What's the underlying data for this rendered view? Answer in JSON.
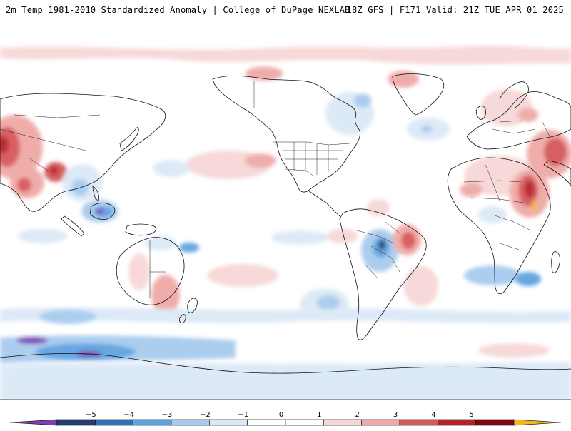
{
  "header": {
    "title": "2m Temp 1981-2010 Standardized Anomaly | College of DuPage NEXLAB",
    "run_info": "18Z GFS | F171 Valid: 21Z TUE APR 01 2025"
  },
  "map": {
    "variable": "2m temperature standardized anomaly",
    "projection": "Pacific-centered cylindrical",
    "colors": {
      "ocean": "#ffffff",
      "coast": "#000000",
      "border": "#222222"
    }
  },
  "colorbar": {
    "labels": [
      "−5",
      "−4",
      "−3",
      "−2",
      "−1",
      "0",
      "1",
      "2",
      "3",
      "4",
      "5"
    ],
    "colors": [
      "#7b3fb0",
      "#233d72",
      "#2f6fb3",
      "#5ea3e0",
      "#a7cbee",
      "#dbe8f6",
      "#ffffff",
      "#ffffff",
      "#f6d7d6",
      "#efa9a6",
      "#d6595a",
      "#b5202a",
      "#7f0713",
      "#f2b71e"
    ]
  }
}
